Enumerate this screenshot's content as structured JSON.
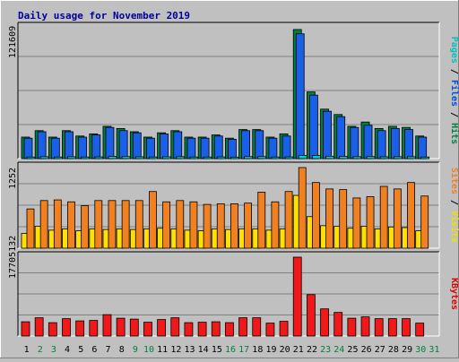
{
  "chart_data": [
    {
      "type": "bar",
      "title": "Daily usage for November 2019",
      "categories": [
        "1",
        "2",
        "3",
        "4",
        "5",
        "6",
        "7",
        "8",
        "9",
        "10",
        "11",
        "12",
        "13",
        "14",
        "15",
        "16",
        "17",
        "18",
        "19",
        "20",
        "21",
        "22",
        "23",
        "24",
        "25",
        "26",
        "27",
        "28",
        "29",
        "30",
        "31"
      ],
      "weekend_categories": [
        "2",
        "3",
        "9",
        "10",
        "16",
        "17",
        "23",
        "24",
        "30",
        "31"
      ],
      "ylabel_parts": [
        {
          "text": "Pages",
          "color": "#00c0c0"
        },
        {
          "text": " / ",
          "color": "#000000"
        },
        {
          "text": "Files",
          "color": "#0050e0"
        },
        {
          "text": " / ",
          "color": "#000000"
        },
        {
          "text": "Hits",
          "color": "#008040"
        }
      ],
      "max_label": "121609",
      "ylim": [
        0,
        121609
      ],
      "grid": true,
      "series": [
        {
          "name": "Hits",
          "color": "#008040",
          "values": [
            20000,
            26000,
            20000,
            26000,
            21000,
            23000,
            30000,
            28000,
            25000,
            20000,
            24000,
            26000,
            20000,
            20000,
            22000,
            19000,
            27000,
            27000,
            20000,
            23000,
            120000,
            62000,
            46000,
            41000,
            30000,
            34000,
            28000,
            30000,
            29000,
            21000,
            0
          ]
        },
        {
          "name": "Files",
          "color": "#1a5fe8",
          "values": [
            19000,
            25000,
            19000,
            25000,
            20000,
            22000,
            29000,
            26000,
            24000,
            19000,
            23000,
            25000,
            19000,
            19000,
            21000,
            18000,
            26000,
            26000,
            19000,
            21000,
            116000,
            59000,
            44000,
            39000,
            29000,
            31000,
            26000,
            28000,
            27000,
            20000,
            0
          ]
        },
        {
          "name": "Pages",
          "color": "#00d0d0",
          "values": [
            1500,
            1800,
            1500,
            1800,
            1500,
            1600,
            2000,
            1900,
            1700,
            1500,
            1700,
            1800,
            1500,
            1500,
            1600,
            1400,
            1900,
            1900,
            1500,
            1600,
            3000,
            2800,
            2200,
            2000,
            1800,
            1900,
            1700,
            1800,
            1800,
            1500,
            0
          ]
        }
      ]
    },
    {
      "type": "bar",
      "categories": [
        "1",
        "2",
        "3",
        "4",
        "5",
        "6",
        "7",
        "8",
        "9",
        "10",
        "11",
        "12",
        "13",
        "14",
        "15",
        "16",
        "17",
        "18",
        "19",
        "20",
        "21",
        "22",
        "23",
        "24",
        "25",
        "26",
        "27",
        "28",
        "29",
        "30",
        "31"
      ],
      "ylabel_parts": [
        {
          "text": "Sites",
          "color": "#f08020"
        },
        {
          "text": " / ",
          "color": "#000000"
        },
        {
          "text": "Visits",
          "color": "#f0e000"
        }
      ],
      "max_label": "1252",
      "ylim": [
        0,
        1252
      ],
      "grid": true,
      "series": [
        {
          "name": "Visits",
          "color": "#ffe000",
          "values": [
            230,
            340,
            280,
            300,
            270,
            300,
            290,
            300,
            290,
            300,
            310,
            300,
            280,
            270,
            300,
            290,
            300,
            300,
            280,
            300,
            820,
            490,
            350,
            340,
            310,
            340,
            300,
            330,
            320,
            270,
            0
          ]
        },
        {
          "name": "Sites",
          "color": "#f08020",
          "values": [
            610,
            740,
            750,
            720,
            660,
            740,
            740,
            740,
            740,
            880,
            720,
            740,
            720,
            680,
            690,
            690,
            700,
            870,
            720,
            880,
            1252,
            1020,
            920,
            910,
            780,
            800,
            960,
            920,
            1020,
            810,
            0
          ]
        }
      ]
    },
    {
      "type": "bar",
      "categories": [
        "1",
        "2",
        "3",
        "4",
        "5",
        "6",
        "7",
        "8",
        "9",
        "10",
        "11",
        "12",
        "13",
        "14",
        "15",
        "16",
        "17",
        "18",
        "19",
        "20",
        "21",
        "22",
        "23",
        "24",
        "25",
        "26",
        "27",
        "28",
        "29",
        "30",
        "31"
      ],
      "ylabel_parts": [
        {
          "text": "KBytes",
          "color": "#e00000"
        }
      ],
      "max_label": "1770513 2",
      "max_label_display": "17705132",
      "ylim": [
        0,
        17705132
      ],
      "grid": true,
      "series": [
        {
          "name": "KBytes",
          "color": "#f01818",
          "values": [
            3200000,
            4100000,
            3000000,
            3900000,
            3400000,
            3500000,
            4800000,
            4000000,
            3800000,
            3100000,
            3700000,
            4100000,
            3000000,
            3100000,
            3200000,
            3000000,
            4100000,
            4100000,
            2900000,
            3300000,
            17705132,
            9300000,
            6100000,
            5300000,
            4000000,
            4300000,
            3900000,
            3900000,
            3900000,
            2900000,
            0
          ]
        }
      ]
    }
  ]
}
